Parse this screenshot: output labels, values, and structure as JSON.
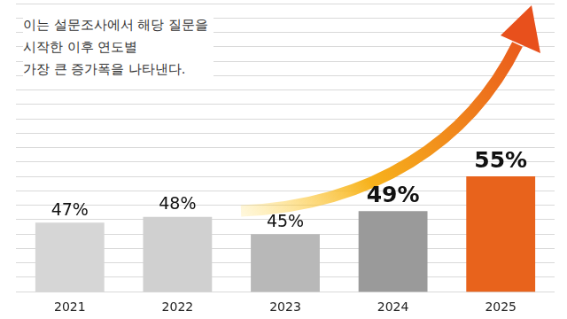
{
  "chart_data": {
    "type": "bar",
    "annotations": [
      "이는 설문조사에서 해당 질문을",
      "시작한 이후 연도별",
      "가장 큰 증가폭을 나타낸다."
    ],
    "categories": [
      "2021",
      "2022",
      "2023",
      "2024",
      "2025"
    ],
    "values": [
      47,
      48,
      45,
      49,
      55
    ],
    "value_labels": [
      "47%",
      "48%",
      "45%",
      "49%",
      "55%"
    ],
    "colors": [
      "#d6d6d6",
      "#d0d0d0",
      "#b8b8b8",
      "#9a9a9a",
      "#e8631c"
    ],
    "ylim": [
      35,
      85
    ],
    "yticks": [
      35,
      37.5,
      40,
      42.5,
      45,
      47.5,
      50,
      52.5,
      55,
      57.5,
      60,
      62.5,
      65,
      67.5,
      70,
      72.5,
      75,
      77.5,
      80,
      82.5,
      85
    ],
    "grid": true,
    "data_labels": true,
    "tick_labels": "x"
  }
}
